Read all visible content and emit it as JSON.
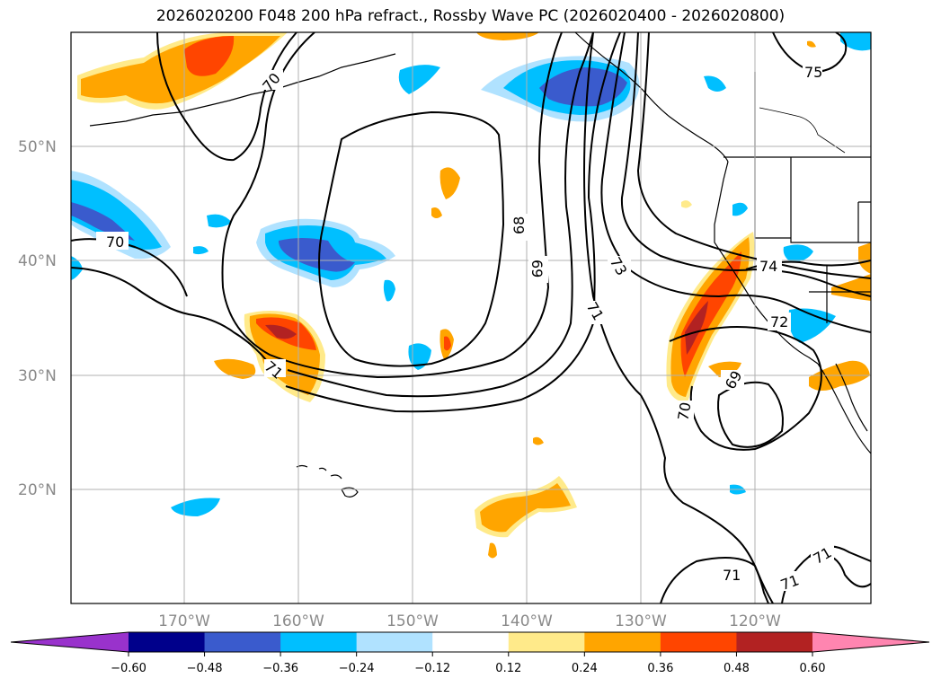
{
  "title": "2026020200 F048 200 hPa refract., Rossby Wave PC (2026020400 - 2026020800)",
  "lat_labels": [
    "50°N",
    "40°N",
    "30°N",
    "20°N"
  ],
  "lon_labels": [
    "170°W",
    "160°W",
    "150°W",
    "140°W",
    "130°W",
    "120°W"
  ],
  "colorbar": {
    "ticks": [
      "−0.60",
      "−0.48",
      "−0.36",
      "−0.24",
      "−0.12",
      "0.12",
      "0.24",
      "0.36",
      "0.48",
      "0.60"
    ],
    "colors": [
      "#9932cc",
      "#00008b",
      "#3a5bcd",
      "#00bfff",
      "#b0e2ff",
      "#ffffff",
      "#ffea8a",
      "#ffa500",
      "#ff4500",
      "#b22222",
      "#ff85b0"
    ]
  },
  "contour_labels": [
    "70",
    "70",
    "71",
    "68",
    "69",
    "71",
    "73",
    "74",
    "72",
    "69",
    "70",
    "75",
    "71",
    "71",
    "71"
  ],
  "map_extent": {
    "lon_min": -180,
    "lon_max": -110,
    "lat_min": 10,
    "lat_max": 60
  }
}
